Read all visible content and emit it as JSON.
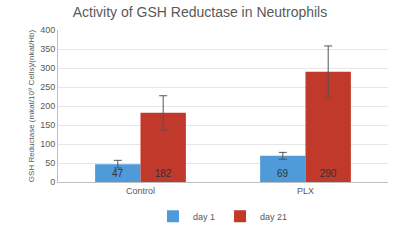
{
  "chart_data": {
    "type": "bar",
    "title": "Activity of GSH Reductase in Neutrophils",
    "y_label": "GSH Reductase (mkat/10⁹ Cells)/(nkat/Hb)",
    "categories": [
      "Control",
      "PLX"
    ],
    "series": [
      {
        "name": "day 1",
        "color": "#4f9ad8",
        "values": [
          47,
          69
        ],
        "error": [
          10,
          9
        ]
      },
      {
        "name": "day 21",
        "color": "#c0392b",
        "values": [
          182,
          290
        ],
        "error": [
          45,
          68
        ]
      }
    ],
    "ylim": [
      0,
      400
    ],
    "yticks": [
      0,
      50,
      100,
      150,
      200,
      250,
      300,
      350,
      400
    ],
    "grid": true,
    "legend": "bottom",
    "data_labels": true
  }
}
